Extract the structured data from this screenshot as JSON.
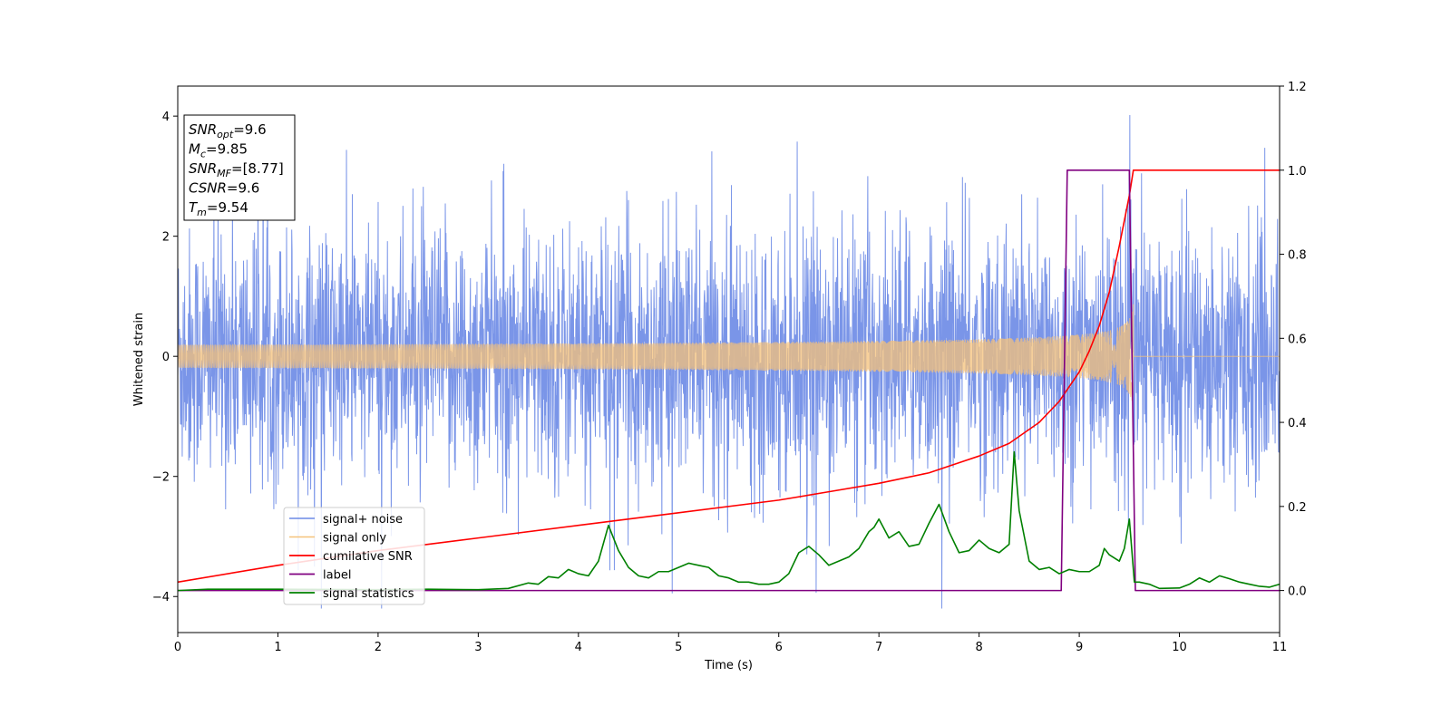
{
  "chart_data": {
    "type": "line",
    "title": "",
    "xlabel": "Time (s)",
    "ylabel": "Whitened strain",
    "xlim": [
      0,
      11
    ],
    "ylim": [
      -4.6,
      4.5
    ],
    "y2lim": [
      -0.1,
      1.2
    ],
    "x_ticks": [
      0,
      1,
      2,
      3,
      4,
      5,
      6,
      7,
      8,
      9,
      10,
      11
    ],
    "y_ticks": [
      4,
      2,
      0,
      -2,
      -4
    ],
    "y2_ticks": [
      1.2,
      1.0,
      0.8,
      0.6,
      0.4,
      0.2,
      0.0
    ],
    "x_tick_labels": [
      "0",
      "1",
      "2",
      "3",
      "4",
      "5",
      "6",
      "7",
      "8",
      "9",
      "10",
      "11"
    ],
    "y_tick_labels": [
      "4",
      "2",
      "0",
      "−2",
      "−4"
    ],
    "y2_tick_labels": [
      "1.2",
      "1.0",
      "0.8",
      "0.6",
      "0.4",
      "0.2",
      "0.0"
    ],
    "grid": false,
    "legend_position": "lower-left",
    "info_box": {
      "position": "top-left",
      "lines": [
        {
          "name": "SNR",
          "sub": "opt",
          "value": "=9.6"
        },
        {
          "name": "M",
          "sub": "c",
          "value": "=9.85"
        },
        {
          "name": "SNR",
          "sub": "MF",
          "value": "=[8.77]"
        },
        {
          "name": "CSNR",
          "sub": "",
          "value": "=9.6"
        },
        {
          "name": "T",
          "sub": "m",
          "value": "=9.54"
        }
      ]
    },
    "series": [
      {
        "name": "signal+ noise",
        "color": "#6b8ae6",
        "axis": "left",
        "kind": "noise",
        "noise_std": 1.05,
        "spike_max": 4.05,
        "spike_min": -4.2,
        "x_range": [
          0,
          11
        ]
      },
      {
        "name": "signal only",
        "color": "#f5c27a",
        "axis": "left",
        "kind": "chirp",
        "amp_start": 0.03,
        "amp_end": 0.9,
        "t_merge": 9.54,
        "x_range": [
          0,
          11
        ]
      },
      {
        "name": "cumilative SNR",
        "color": "#ff0000",
        "axis": "right",
        "x": [
          0,
          1,
          2,
          3,
          4,
          5,
          6,
          6.5,
          7,
          7.5,
          8,
          8.3,
          8.6,
          8.8,
          9.0,
          9.1,
          9.2,
          9.3,
          9.4,
          9.45,
          9.5,
          9.54,
          11
        ],
        "y": [
          0.02,
          0.06,
          0.095,
          0.125,
          0.155,
          0.185,
          0.215,
          0.235,
          0.255,
          0.28,
          0.32,
          0.35,
          0.4,
          0.45,
          0.52,
          0.57,
          0.63,
          0.71,
          0.82,
          0.88,
          0.94,
          1.0,
          1.0
        ]
      },
      {
        "name": "label",
        "color": "#800080",
        "axis": "right",
        "x": [
          0,
          8.82,
          8.88,
          9.5,
          9.56,
          11
        ],
        "y": [
          0.0,
          0.0,
          1.0,
          1.0,
          0.0,
          0.0
        ]
      },
      {
        "name": "signal statistics",
        "color": "#008000",
        "axis": "right",
        "x": [
          0,
          0.3,
          1.0,
          2.0,
          2.5,
          3.0,
          3.3,
          3.5,
          3.6,
          3.7,
          3.8,
          3.9,
          4.0,
          4.1,
          4.2,
          4.3,
          4.4,
          4.5,
          4.6,
          4.7,
          4.8,
          4.9,
          5.0,
          5.1,
          5.2,
          5.3,
          5.4,
          5.5,
          5.6,
          5.7,
          5.8,
          5.9,
          6.0,
          6.1,
          6.2,
          6.3,
          6.4,
          6.5,
          6.6,
          6.7,
          6.8,
          6.9,
          6.95,
          7.0,
          7.1,
          7.2,
          7.3,
          7.4,
          7.5,
          7.6,
          7.7,
          7.8,
          7.9,
          8.0,
          8.1,
          8.2,
          8.3,
          8.35,
          8.4,
          8.5,
          8.6,
          8.7,
          8.8,
          8.9,
          9.0,
          9.1,
          9.2,
          9.25,
          9.3,
          9.4,
          9.45,
          9.5,
          9.55,
          9.6,
          9.7,
          9.8,
          10.0,
          10.1,
          10.2,
          10.3,
          10.4,
          10.5,
          10.6,
          10.7,
          10.8,
          10.9,
          11
        ],
        "y": [
          0.0,
          0.003,
          0.003,
          0.002,
          0.003,
          0.002,
          0.005,
          0.018,
          0.015,
          0.033,
          0.03,
          0.05,
          0.04,
          0.035,
          0.07,
          0.155,
          0.095,
          0.055,
          0.035,
          0.03,
          0.045,
          0.045,
          0.055,
          0.065,
          0.06,
          0.055,
          0.035,
          0.03,
          0.02,
          0.02,
          0.015,
          0.015,
          0.02,
          0.04,
          0.09,
          0.105,
          0.085,
          0.06,
          0.07,
          0.08,
          0.1,
          0.14,
          0.15,
          0.17,
          0.125,
          0.14,
          0.105,
          0.11,
          0.16,
          0.205,
          0.14,
          0.09,
          0.095,
          0.12,
          0.1,
          0.09,
          0.11,
          0.33,
          0.19,
          0.07,
          0.05,
          0.055,
          0.04,
          0.05,
          0.045,
          0.045,
          0.06,
          0.1,
          0.085,
          0.07,
          0.1,
          0.17,
          0.02,
          0.02,
          0.015,
          0.005,
          0.006,
          0.015,
          0.03,
          0.02,
          0.035,
          0.028,
          0.02,
          0.015,
          0.01,
          0.008,
          0.015
        ]
      }
    ]
  }
}
